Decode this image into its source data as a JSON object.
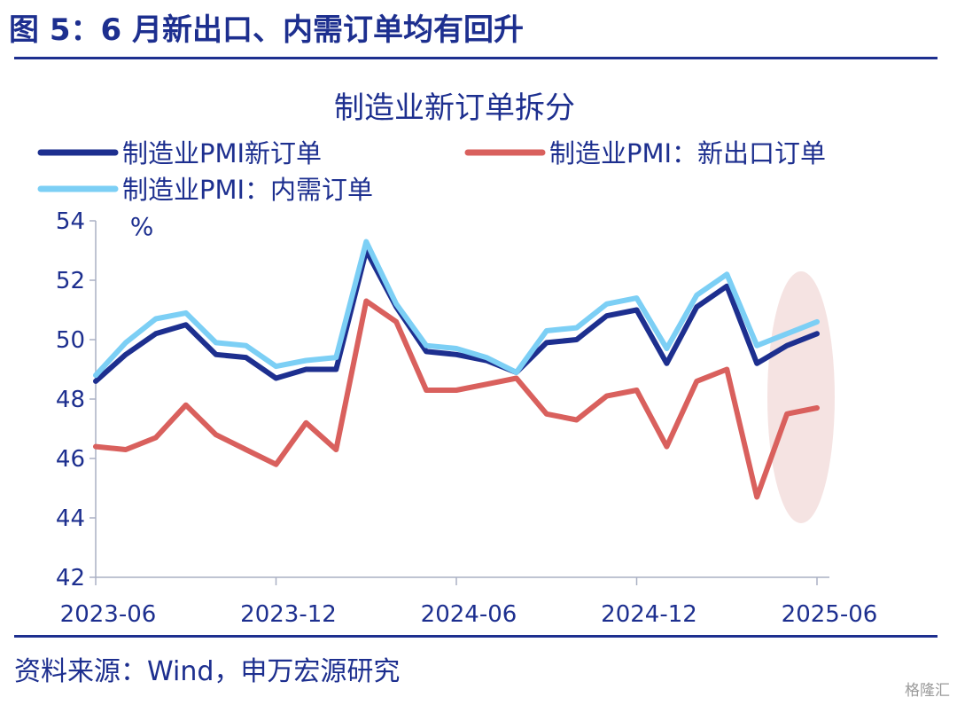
{
  "figure_title": "图 5：6 月新出口、内需订单均有回升",
  "source_note": "资料来源：Wind，申万宏源研究",
  "watermark": "格隆汇",
  "chart_data": {
    "type": "line",
    "title": "制造业新订单拆分",
    "ylabel": "%",
    "ylim": [
      42,
      54
    ],
    "yticks": [
      42,
      44,
      46,
      48,
      50,
      52,
      54
    ],
    "xticks": [
      "2023-06",
      "2023-12",
      "2024-06",
      "2024-12",
      "2025-06"
    ],
    "x": [
      "2023-06",
      "2023-07",
      "2023-08",
      "2023-09",
      "2023-10",
      "2023-11",
      "2023-12",
      "2024-01",
      "2024-02",
      "2024-03",
      "2024-04",
      "2024-05",
      "2024-06",
      "2024-07",
      "2024-08",
      "2024-09",
      "2024-10",
      "2024-11",
      "2024-12",
      "2025-01",
      "2025-02",
      "2025-03",
      "2025-04",
      "2025-05",
      "2025-06"
    ],
    "grid": false,
    "legend_position": "top-left",
    "highlight": "2025-04 to 2025-06",
    "series": [
      {
        "name": "制造业PMI新订单",
        "color": "#1d2f8f",
        "values": [
          48.6,
          49.5,
          50.2,
          50.5,
          49.5,
          49.4,
          48.7,
          49.0,
          49.0,
          53.0,
          51.1,
          49.6,
          49.5,
          49.3,
          48.9,
          49.9,
          50.0,
          50.8,
          51.0,
          49.2,
          51.1,
          51.8,
          49.2,
          49.8,
          50.2
        ]
      },
      {
        "name": "制造业PMI：新出口订单",
        "color": "#d9605d",
        "values": [
          46.4,
          46.3,
          46.7,
          47.8,
          46.8,
          46.3,
          45.8,
          47.2,
          46.3,
          51.3,
          50.6,
          48.3,
          48.3,
          48.5,
          48.7,
          47.5,
          47.3,
          48.1,
          48.3,
          46.4,
          48.6,
          49.0,
          44.7,
          47.5,
          47.7
        ]
      },
      {
        "name": "制造业PMI：内需订单",
        "color": "#7ccff5",
        "values": [
          48.8,
          49.9,
          50.7,
          50.9,
          49.9,
          49.8,
          49.1,
          49.3,
          49.4,
          53.3,
          51.2,
          49.8,
          49.7,
          49.4,
          48.9,
          50.3,
          50.4,
          51.2,
          51.4,
          49.7,
          51.5,
          52.2,
          49.8,
          50.2,
          50.6
        ]
      }
    ]
  }
}
